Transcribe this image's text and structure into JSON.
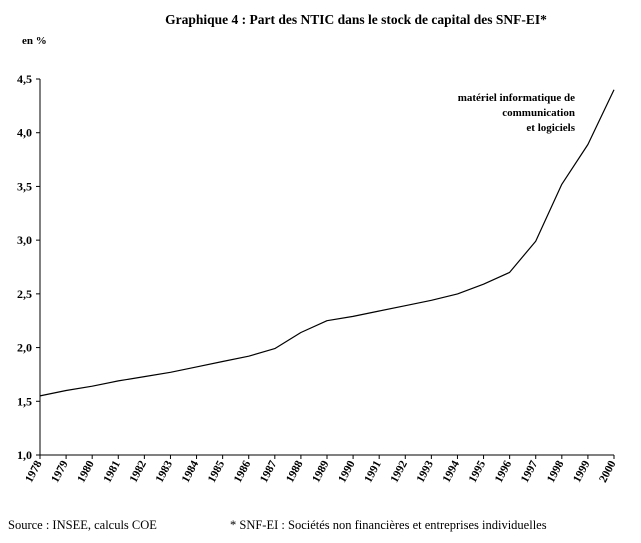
{
  "chart_data": {
    "type": "line",
    "title": "Graphique 4 : Part des NTIC dans le stock de capital des SNF-EI*",
    "ylabel": "en %",
    "xlabel": "",
    "ylim": [
      1.0,
      4.5
    ],
    "yticks": [
      "1,0",
      "1,5",
      "2,0",
      "2,5",
      "3,0",
      "3,5",
      "4,0",
      "4,5"
    ],
    "x": [
      "1978",
      "1979",
      "1980",
      "1981",
      "1982",
      "1983",
      "1984",
      "1985",
      "1986",
      "1987",
      "1988",
      "1989",
      "1990",
      "1991",
      "1992",
      "1993",
      "1994",
      "1995",
      "1996",
      "1997",
      "1998",
      "1999",
      "2000"
    ],
    "series": [
      {
        "name": "",
        "color": "#000000",
        "values": [
          1.55,
          1.6,
          1.64,
          1.69,
          1.73,
          1.77,
          1.82,
          1.87,
          1.92,
          1.99,
          2.14,
          2.25,
          2.29,
          2.34,
          2.39,
          2.44,
          2.5,
          2.59,
          2.7,
          2.99,
          3.52,
          3.89,
          4.4
        ]
      }
    ],
    "annotation": [
      "matériel informatique de",
      "communication",
      "et logiciels"
    ],
    "grid": false,
    "legend": "none"
  },
  "footer": {
    "source": "Source : INSEE, calculs COE",
    "note": "* SNF-EI : Sociétés non financières et entreprises individuelles"
  }
}
